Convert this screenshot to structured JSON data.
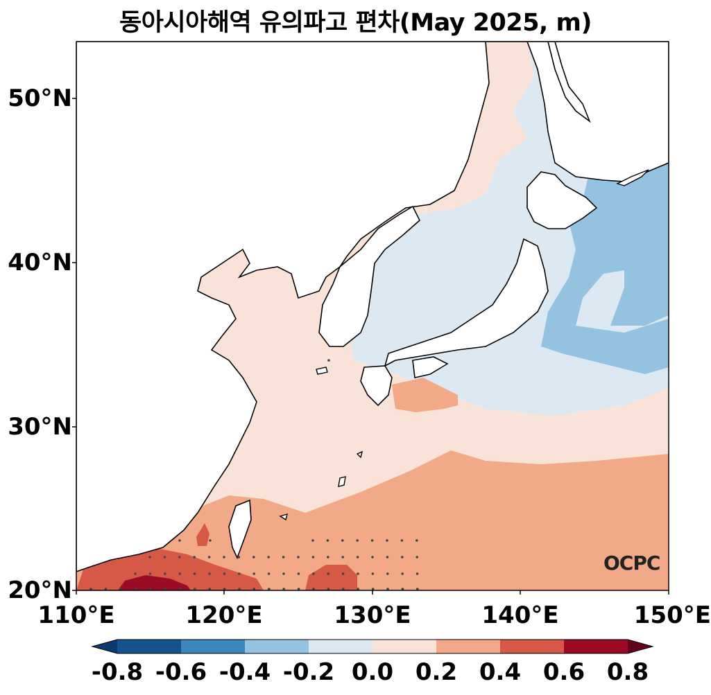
{
  "title": "동아시아해역 유의파고 편차(May 2025, m)",
  "map": {
    "lat_ticks": [
      "50°N",
      "40°N",
      "30°N",
      "20°N"
    ],
    "lon_ticks": [
      "110°E",
      "120°E",
      "130°E",
      "140°E",
      "150°E"
    ],
    "extent": {
      "lon_min": 110,
      "lon_max": 150,
      "lat_min": 20,
      "lat_max": 53.5
    },
    "stippling": "significance dots over southern area (~20–23°N, 113–133°E)",
    "logo_text": "OCPC"
  },
  "colorbar": {
    "ticks": [
      "-0.8",
      "-0.6",
      "-0.4",
      "-0.2",
      "0.0",
      "0.2",
      "0.4",
      "0.6",
      "0.8"
    ],
    "colors": [
      "#0b3b6e",
      "#175290",
      "#3b87c0",
      "#93c3e0",
      "#dce9f3",
      "#f9e3d8",
      "#f2a987",
      "#d65847",
      "#9d0a25",
      "#66011b"
    ],
    "extend": "both"
  },
  "colors": {
    "pos_light": "#f9e3d8",
    "pos_mid": "#f2a987",
    "pos_strong": "#d65847",
    "pos_max": "#9d0a25",
    "neg_light": "#dce9f3",
    "neg_mid": "#93c3e0",
    "land": "#ffffff"
  }
}
